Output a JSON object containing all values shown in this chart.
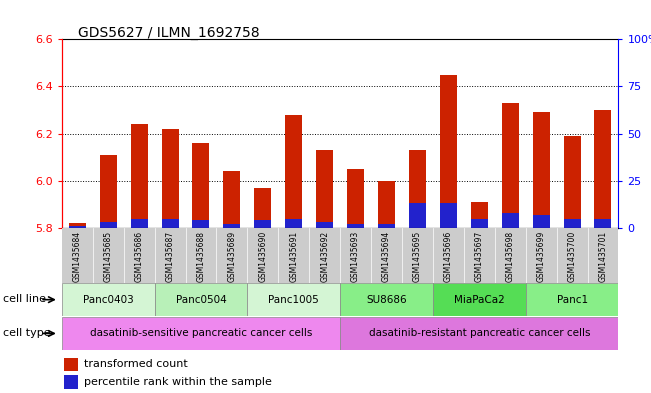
{
  "title": "GDS5627 / ILMN_1692758",
  "samples": [
    "GSM1435684",
    "GSM1435685",
    "GSM1435686",
    "GSM1435687",
    "GSM1435688",
    "GSM1435689",
    "GSM1435690",
    "GSM1435691",
    "GSM1435692",
    "GSM1435693",
    "GSM1435694",
    "GSM1435695",
    "GSM1435696",
    "GSM1435697",
    "GSM1435698",
    "GSM1435699",
    "GSM1435700",
    "GSM1435701"
  ],
  "red_values": [
    5.82,
    6.11,
    6.24,
    6.22,
    6.16,
    6.04,
    5.97,
    6.28,
    6.13,
    6.05,
    6.0,
    6.13,
    6.45,
    5.91,
    6.33,
    6.29,
    6.19,
    6.3
  ],
  "blue_percentiles": [
    1,
    3,
    5,
    5,
    4,
    2,
    4,
    5,
    3,
    2,
    2,
    13,
    13,
    5,
    8,
    7,
    5,
    5
  ],
  "ymin": 5.8,
  "ymax": 6.6,
  "y_left_ticks": [
    5.8,
    6.0,
    6.2,
    6.4,
    6.6
  ],
  "y_right_ticks": [
    0,
    25,
    50,
    75,
    100
  ],
  "cell_line_groups": [
    {
      "label": "Panc0403",
      "start": 0,
      "end": 3,
      "color": "#d4f5d4"
    },
    {
      "label": "Panc0504",
      "start": 3,
      "end": 6,
      "color": "#b8f0b8"
    },
    {
      "label": "Panc1005",
      "start": 6,
      "end": 9,
      "color": "#d4f5d4"
    },
    {
      "label": "SU8686",
      "start": 9,
      "end": 12,
      "color": "#88ee88"
    },
    {
      "label": "MiaPaCa2",
      "start": 12,
      "end": 15,
      "color": "#55dd55"
    },
    {
      "label": "Panc1",
      "start": 15,
      "end": 18,
      "color": "#88ee88"
    }
  ],
  "cell_type_sensitive": {
    "label": "dasatinib-sensitive pancreatic cancer cells",
    "start": 0,
    "end": 9,
    "color": "#ee88ee"
  },
  "cell_type_resistant": {
    "label": "dasatinib-resistant pancreatic cancer cells",
    "start": 9,
    "end": 18,
    "color": "#dd77dd"
  },
  "bar_color": "#cc2200",
  "blue_color": "#2222cc",
  "label_cell_line": "cell line",
  "label_cell_type": "cell type",
  "legend_red": "transformed count",
  "legend_blue": "percentile rank within the sample",
  "right_tick_suffix": "%"
}
